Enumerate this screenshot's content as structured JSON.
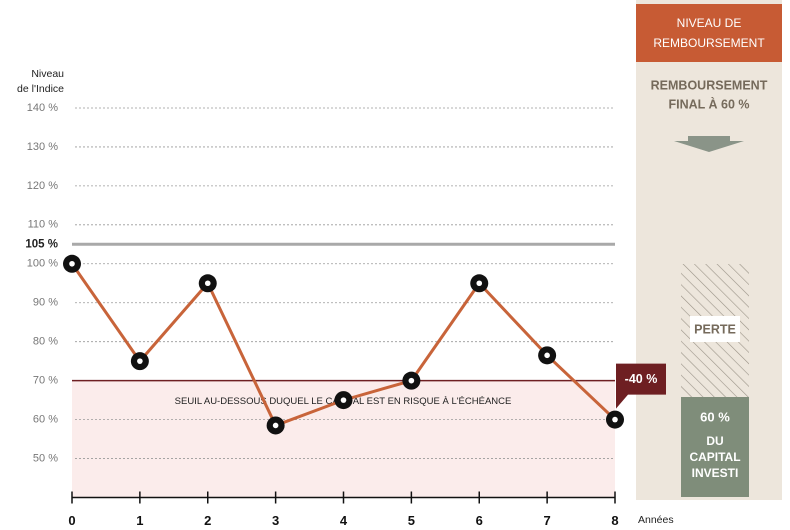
{
  "chart_data": {
    "type": "line",
    "y_axis_title": [
      "Niveau",
      "de l'Indice"
    ],
    "x_axis_title": "Années",
    "x": [
      0,
      1,
      2,
      3,
      4,
      5,
      6,
      7,
      8
    ],
    "values": [
      100,
      75,
      95,
      58.5,
      65,
      70,
      95,
      76.5,
      60
    ],
    "color": "#c8643a",
    "xlim": [
      0,
      8
    ],
    "xticks": [
      0,
      1,
      2,
      3,
      4,
      5,
      6,
      7,
      8
    ],
    "ylim": [
      40,
      145
    ],
    "yticks": [
      {
        "value": 50,
        "label": "50 %"
      },
      {
        "value": 60,
        "label": "60 %"
      },
      {
        "value": 70,
        "label": "70 %"
      },
      {
        "value": 80,
        "label": "80 %"
      },
      {
        "value": 90,
        "label": "90 %"
      },
      {
        "value": 100,
        "label": "100 %"
      },
      {
        "value": 110,
        "label": "110 %"
      },
      {
        "value": 120,
        "label": "120 %"
      },
      {
        "value": 130,
        "label": "130 %"
      },
      {
        "value": 140,
        "label": "140 %"
      }
    ],
    "grid": true,
    "reference_lines": [
      {
        "value": 105,
        "label": "105 %",
        "color": "#a9a9a9"
      },
      {
        "value": 70,
        "label": "SEUIL AU-DESSOUS DUQUEL LE CAPITAL EST EN RISQUE À L'ÉCHÉANCE",
        "color": "#6e1f22"
      }
    ],
    "annotation": "-40 %",
    "side_panel": {
      "header": [
        "NIVEAU DE",
        "REMBOURSEMENT"
      ],
      "final": [
        "REMBOURSEMENT",
        "FINAL À 60 %"
      ],
      "loss": "PERTE",
      "capital": [
        "60 %",
        "DU",
        "CAPITAL",
        "INVESTI"
      ]
    }
  }
}
